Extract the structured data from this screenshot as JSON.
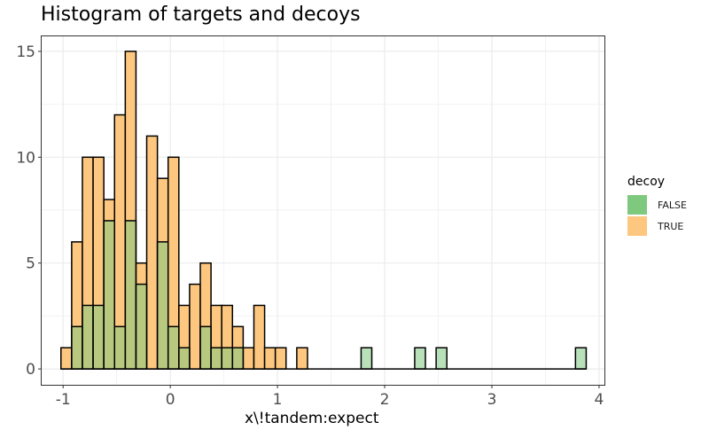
{
  "title": "Histogram of targets and decoys",
  "xlabel": "x\\!tandem:expect",
  "legend": {
    "title": "decoy",
    "items": [
      {
        "label": "FALSE",
        "color": "#7fc97f"
      },
      {
        "label": "TRUE",
        "color": "#fdc77f"
      }
    ]
  },
  "chart_data": {
    "type": "bar",
    "subtype": "histogram-overlaid",
    "title": "Histogram of targets and decoys",
    "xlabel": "x\\!tandem:expect",
    "ylabel": "",
    "xlim": [
      -1.2,
      4.05
    ],
    "ylim": [
      -0.75,
      15.75
    ],
    "xticks": [
      -1,
      0,
      1,
      2,
      3,
      4
    ],
    "yticks": [
      0,
      5,
      10,
      15
    ],
    "grid": true,
    "legend_position": "right",
    "bin_width": 0.1,
    "bin_starts": [
      -1.02,
      -0.92,
      -0.82,
      -0.72,
      -0.62,
      -0.52,
      -0.42,
      -0.32,
      -0.22,
      -0.12,
      -0.02,
      0.08,
      0.18,
      0.28,
      0.38,
      0.48,
      0.58,
      0.68,
      0.78,
      0.88,
      0.98,
      1.08,
      1.18,
      1.28,
      1.38,
      1.48,
      1.58,
      1.68,
      1.78,
      1.88,
      1.98,
      2.08,
      2.18,
      2.28,
      2.38,
      2.48,
      2.58,
      2.68,
      2.78,
      2.88,
      2.98,
      3.08,
      3.18,
      3.28,
      3.38,
      3.48,
      3.58,
      3.68,
      3.78
    ],
    "series": [
      {
        "name": "FALSE",
        "color": "#7fc97f",
        "values": [
          0,
          2,
          3,
          3,
          7,
          2,
          7,
          4,
          0,
          6,
          2,
          1,
          0,
          2,
          1,
          1,
          1,
          0,
          0,
          0,
          0,
          0,
          0,
          0,
          0,
          0,
          0,
          0,
          1,
          0,
          0,
          0,
          0,
          1,
          0,
          1,
          0,
          0,
          0,
          0,
          0,
          0,
          0,
          0,
          0,
          0,
          0,
          0,
          1
        ]
      },
      {
        "name": "TRUE",
        "color": "#fdc77f",
        "values": [
          1,
          6,
          10,
          10,
          8,
          12,
          15,
          5,
          11,
          9,
          10,
          3,
          4,
          5,
          3,
          3,
          2,
          1,
          3,
          1,
          1,
          0,
          1,
          0,
          0,
          0,
          0,
          0,
          0,
          0,
          0,
          0,
          0,
          0,
          0,
          0,
          0,
          0,
          0,
          0,
          0,
          0,
          0,
          0,
          0,
          0,
          0,
          0,
          0
        ]
      }
    ]
  }
}
